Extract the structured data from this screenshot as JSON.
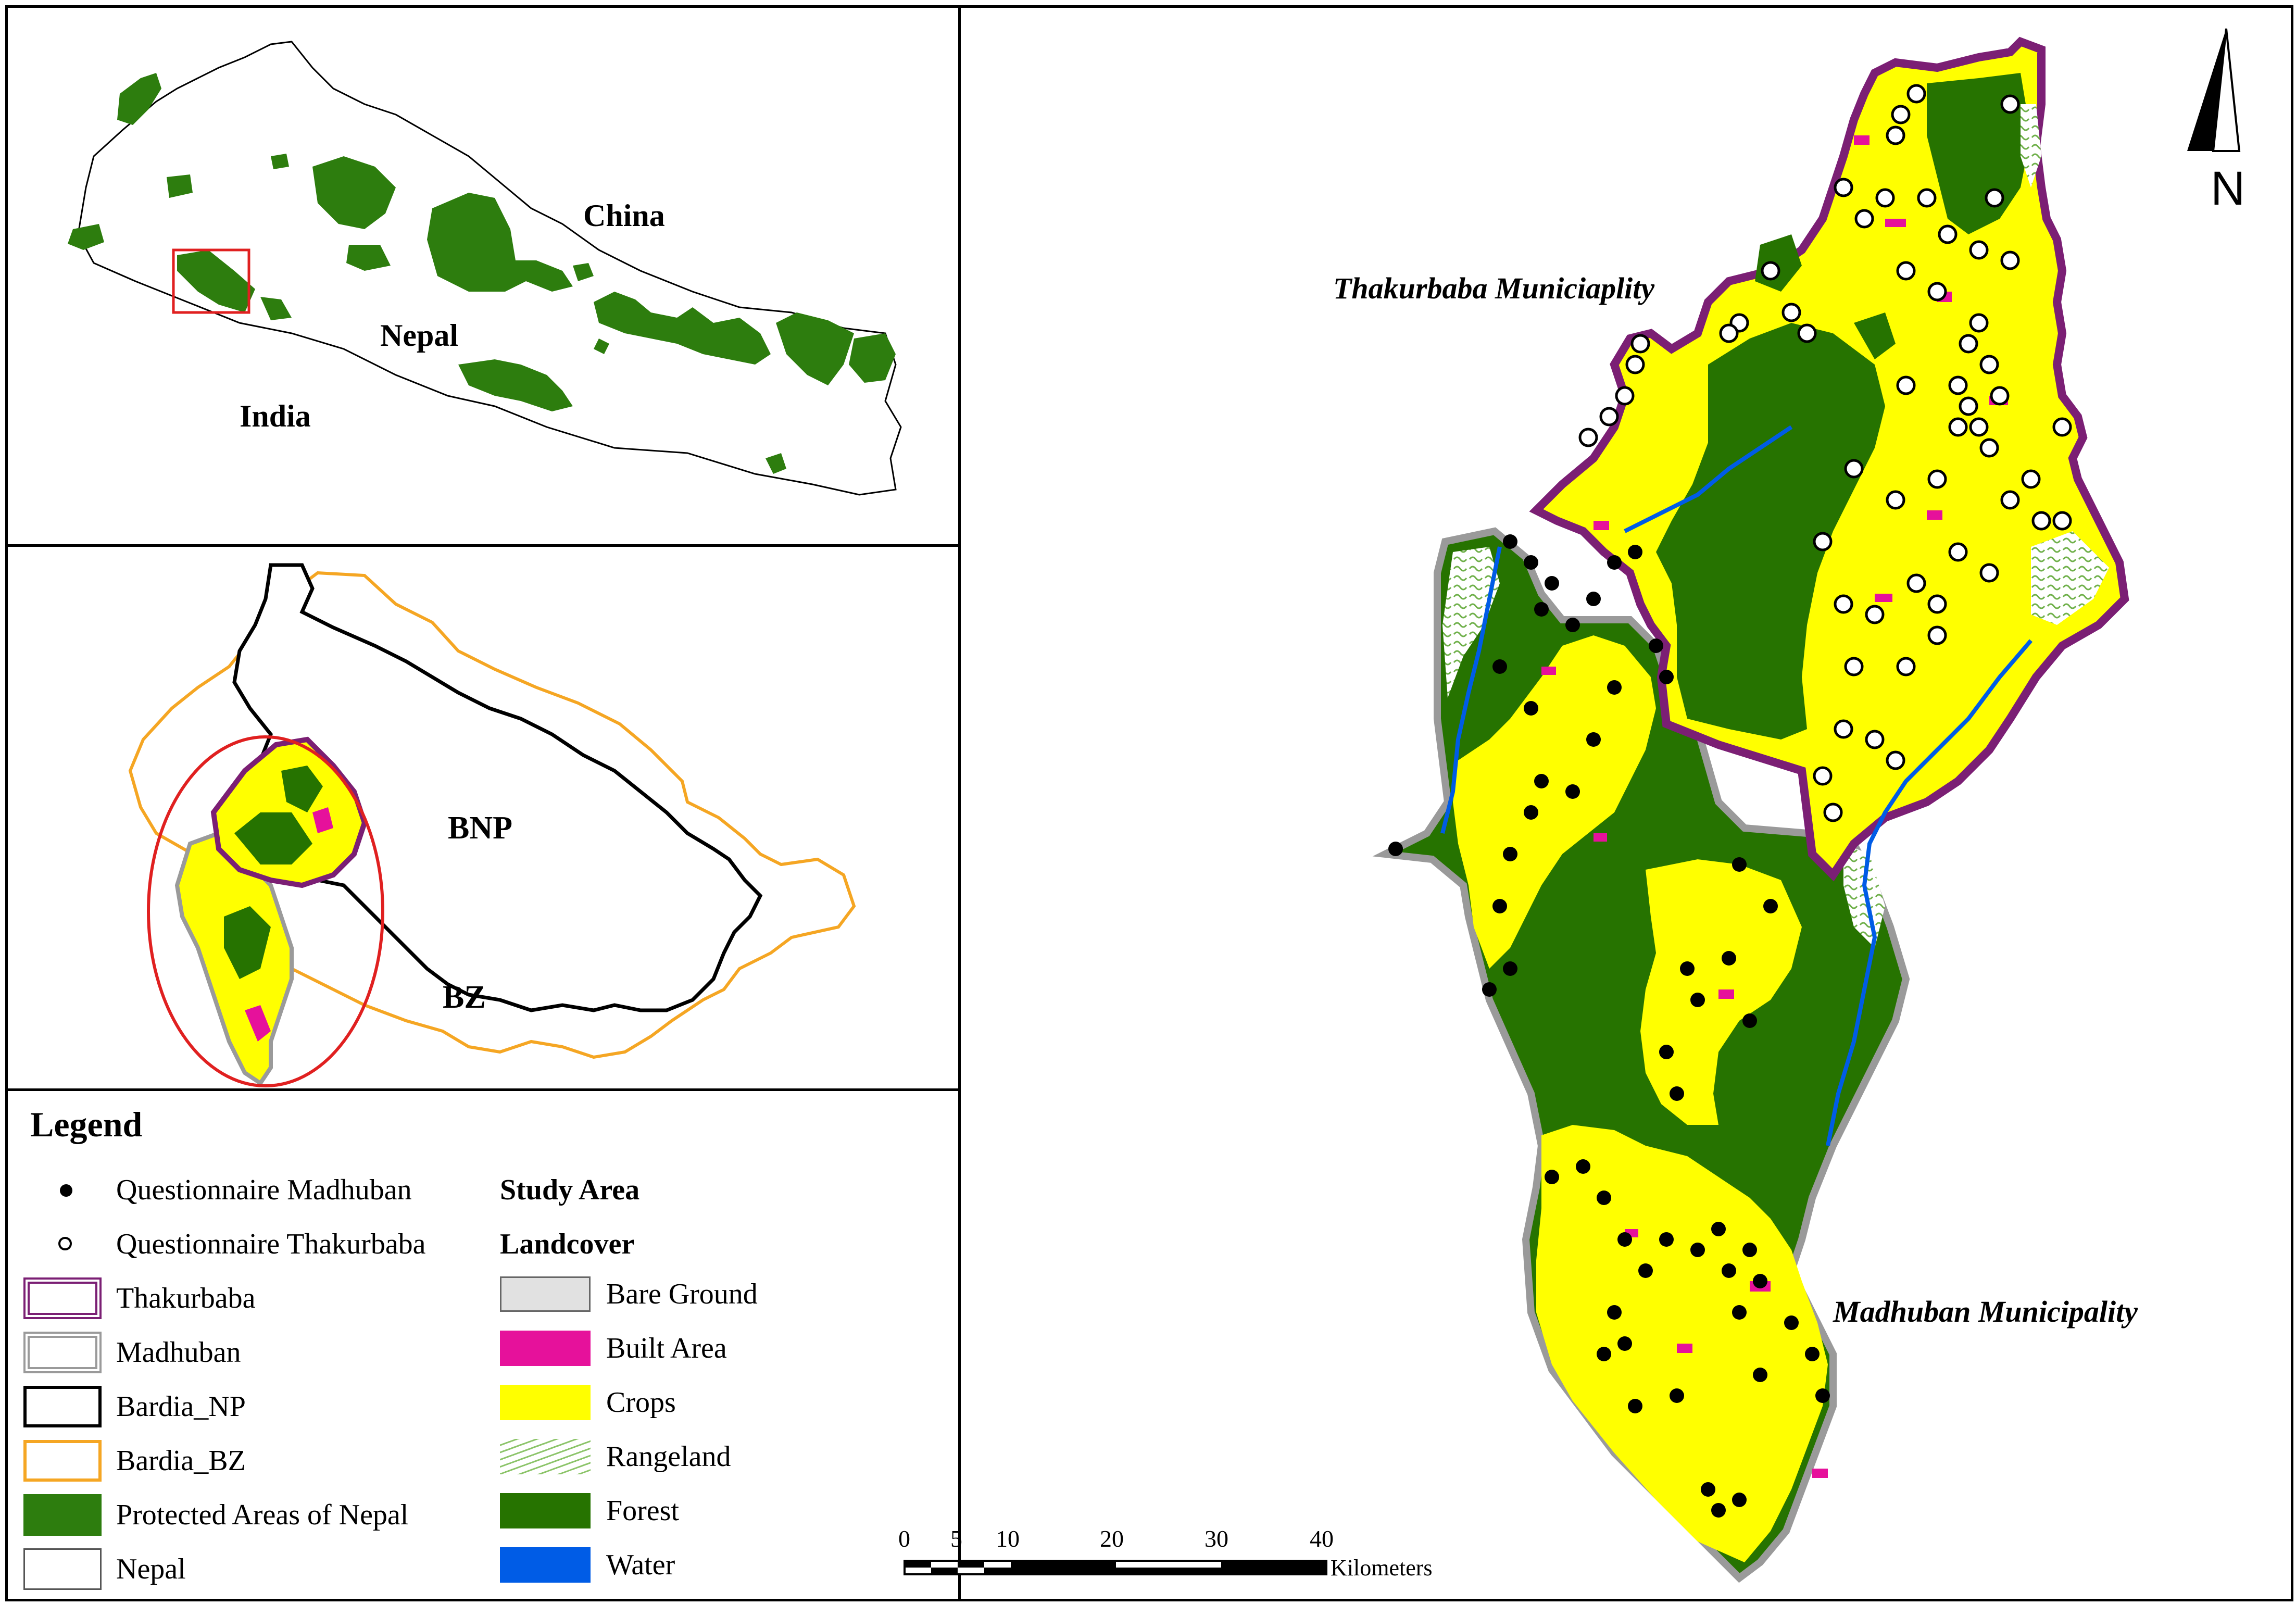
{
  "inset_nepal": {
    "labels": {
      "china": "China",
      "nepal": "Nepal",
      "india": "India"
    }
  },
  "inset_bardia": {
    "labels": {
      "bnp": "BNP",
      "bz": "BZ"
    }
  },
  "main_map": {
    "labels": {
      "thakurbaba": "Thakurbaba Municiaplity",
      "madhuban": "Madhuban Municipality"
    },
    "north_arrow": {
      "label": "N",
      "icon": "north-arrow-icon"
    }
  },
  "legend": {
    "title": "Legend",
    "left_items": [
      {
        "label": "Questionnaire Madhuban",
        "symbol": "filled-dot"
      },
      {
        "label": "Questionnaire Thakurbaba",
        "symbol": "hollow-dot"
      },
      {
        "label": "Thakurbaba",
        "symbol": "purple-double-outline"
      },
      {
        "label": "Madhuban",
        "symbol": "grey-double-outline"
      },
      {
        "label": "Bardia_NP",
        "symbol": "black-outline"
      },
      {
        "label": "Bardia_BZ",
        "symbol": "orange-outline"
      },
      {
        "label": "Protected Areas of Nepal",
        "symbol": "green-fill"
      },
      {
        "label": "Nepal",
        "symbol": "white-fill"
      }
    ],
    "study_area_heading": "Study Area",
    "landcover_heading": "Landcover",
    "landcover_items": [
      {
        "label": "Bare Ground",
        "color": "#e1e1e1"
      },
      {
        "label": "Built Area",
        "color": "#e6119b"
      },
      {
        "label": "Crops",
        "color": "#ffff00"
      },
      {
        "label": "Rangeland",
        "color": "#ffffff",
        "pattern": "green-hatch"
      },
      {
        "label": "Forest",
        "color": "#267300"
      },
      {
        "label": "Water",
        "color": "#005ce6"
      }
    ]
  },
  "scale_bar": {
    "ticks": [
      "0",
      "5",
      "10",
      "20",
      "30",
      "40"
    ],
    "unit": "Kilometers"
  },
  "colors": {
    "protected": "#2d7d0e",
    "forest": "#267300",
    "crops": "#ffff00",
    "built": "#e6119b",
    "water": "#005ce6",
    "thakurbaba_border": "#7b1f74",
    "madhuban_border": "#9a9a9a",
    "bz_border": "#f5a623",
    "inset_highlight": "#e02020"
  }
}
